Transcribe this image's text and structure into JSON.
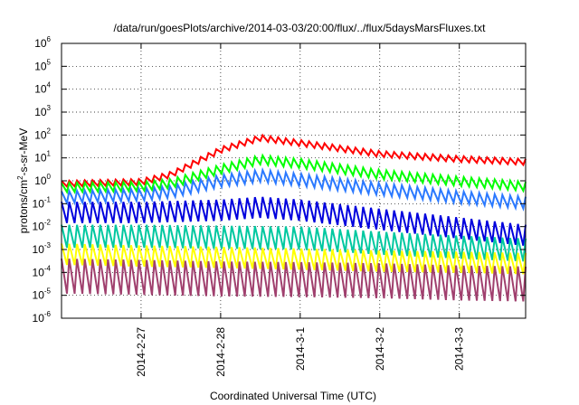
{
  "chart_data": {
    "type": "line",
    "title": "/data/run/goesPlots/archive/2014-03-03/20:00/flux/../flux/5daysMarsFluxes.txt",
    "xlabel": "Coordinated Universal Time (UTC)",
    "ylabel_base": "protons/cm",
    "ylabel_sup": "2",
    "ylabel_rest": "-s-sr-MeV",
    "yscale": "log",
    "ylim_exp": [
      -6,
      6
    ],
    "y_ticks": [
      {
        "base": "10",
        "exp": "-6"
      },
      {
        "base": "10",
        "exp": "-5"
      },
      {
        "base": "10",
        "exp": "-4"
      },
      {
        "base": "10",
        "exp": "-3"
      },
      {
        "base": "10",
        "exp": "-2"
      },
      {
        "base": "10",
        "exp": "-1"
      },
      {
        "base": "10",
        "exp": "0"
      },
      {
        "base": "10",
        "exp": "1"
      },
      {
        "base": "10",
        "exp": "2"
      },
      {
        "base": "10",
        "exp": "3"
      },
      {
        "base": "10",
        "exp": "4"
      },
      {
        "base": "10",
        "exp": "5"
      },
      {
        "base": "10",
        "exp": "6"
      }
    ],
    "xlim": [
      "2014-02-26 00:00",
      "2014-03-03 20:00"
    ],
    "x_ticks": [
      "2014-2-27",
      "2014-2-28",
      "2014-3-1",
      "2014-3-2",
      "2014-3-3"
    ],
    "grid": true,
    "sawtooth_cycles": 60,
    "series": [
      {
        "color": "#ff0000",
        "envelope": [
          {
            "x": "2014-02-26 00:00",
            "y": 1.0
          },
          {
            "x": "2014-02-27 00:00",
            "y": 1.2
          },
          {
            "x": "2014-02-27 09:00",
            "y": 2.5
          },
          {
            "x": "2014-02-28 00:00",
            "y": 30
          },
          {
            "x": "2014-02-28 12:00",
            "y": 100
          },
          {
            "x": "2014-03-01 00:00",
            "y": 60
          },
          {
            "x": "2014-03-02 00:00",
            "y": 20
          },
          {
            "x": "2014-03-03 00:00",
            "y": 12
          },
          {
            "x": "2014-03-03 20:00",
            "y": 9
          }
        ],
        "dip": 0.55
      },
      {
        "color": "#00ff00",
        "envelope": [
          {
            "x": "2014-02-26 00:00",
            "y": 0.8
          },
          {
            "x": "2014-02-27 00:00",
            "y": 0.9
          },
          {
            "x": "2014-02-27 09:00",
            "y": 1.2
          },
          {
            "x": "2014-02-28 00:00",
            "y": 5
          },
          {
            "x": "2014-02-28 12:00",
            "y": 13
          },
          {
            "x": "2014-03-01 00:00",
            "y": 9
          },
          {
            "x": "2014-03-02 00:00",
            "y": 3
          },
          {
            "x": "2014-03-03 00:00",
            "y": 1.5
          },
          {
            "x": "2014-03-03 20:00",
            "y": 0.9
          }
        ],
        "dip": 0.4
      },
      {
        "color": "#2b79ff",
        "envelope": [
          {
            "x": "2014-02-26 00:00",
            "y": 0.35
          },
          {
            "x": "2014-02-27 00:00",
            "y": 0.45
          },
          {
            "x": "2014-02-27 09:00",
            "y": 0.6
          },
          {
            "x": "2014-02-28 00:00",
            "y": 1.8
          },
          {
            "x": "2014-02-28 12:00",
            "y": 3
          },
          {
            "x": "2014-03-01 00:00",
            "y": 2
          },
          {
            "x": "2014-03-02 00:00",
            "y": 0.8
          },
          {
            "x": "2014-03-03 00:00",
            "y": 0.35
          },
          {
            "x": "2014-03-03 20:00",
            "y": 0.2
          }
        ],
        "dip": 0.3
      },
      {
        "color": "#0000dd",
        "envelope": [
          {
            "x": "2014-02-26 00:00",
            "y": 0.12
          },
          {
            "x": "2014-02-27 00:00",
            "y": 0.12
          },
          {
            "x": "2014-02-28 00:00",
            "y": 0.15
          },
          {
            "x": "2014-02-28 12:00",
            "y": 0.2
          },
          {
            "x": "2014-03-01 00:00",
            "y": 0.15
          },
          {
            "x": "2014-03-02 00:00",
            "y": 0.06
          },
          {
            "x": "2014-03-03 00:00",
            "y": 0.025
          },
          {
            "x": "2014-03-03 20:00",
            "y": 0.012
          }
        ],
        "dip": 0.12
      },
      {
        "color": "#00c8a0",
        "envelope": [
          {
            "x": "2014-02-26 00:00",
            "y": 0.012
          },
          {
            "x": "2014-02-27 00:00",
            "y": 0.012
          },
          {
            "x": "2014-02-28 00:00",
            "y": 0.011
          },
          {
            "x": "2014-03-01 00:00",
            "y": 0.01
          },
          {
            "x": "2014-03-02 00:00",
            "y": 0.006
          },
          {
            "x": "2014-03-03 00:00",
            "y": 0.004
          },
          {
            "x": "2014-03-03 20:00",
            "y": 0.003
          }
        ],
        "dip": 0.1
      },
      {
        "color": "#ffff00",
        "envelope": [
          {
            "x": "2014-02-26 00:00",
            "y": 0.0018
          },
          {
            "x": "2014-02-27 00:00",
            "y": 0.0015
          },
          {
            "x": "2014-02-28 00:00",
            "y": 0.0013
          },
          {
            "x": "2014-03-01 00:00",
            "y": 0.0011
          },
          {
            "x": "2014-03-02 00:00",
            "y": 0.0009
          },
          {
            "x": "2014-03-03 00:00",
            "y": 0.0008
          },
          {
            "x": "2014-03-03 20:00",
            "y": 0.0007
          }
        ],
        "dip": 0.12
      },
      {
        "color": "#a0406e",
        "envelope": [
          {
            "x": "2014-02-26 00:00",
            "y": 0.0004
          },
          {
            "x": "2014-02-27 00:00",
            "y": 0.00035
          },
          {
            "x": "2014-02-28 00:00",
            "y": 0.0003
          },
          {
            "x": "2014-03-01 00:00",
            "y": 0.00028
          },
          {
            "x": "2014-03-02 00:00",
            "y": 0.00025
          },
          {
            "x": "2014-03-03 00:00",
            "y": 0.0002
          },
          {
            "x": "2014-03-03 20:00",
            "y": 0.00018
          }
        ],
        "dip": 0.03
      }
    ]
  }
}
